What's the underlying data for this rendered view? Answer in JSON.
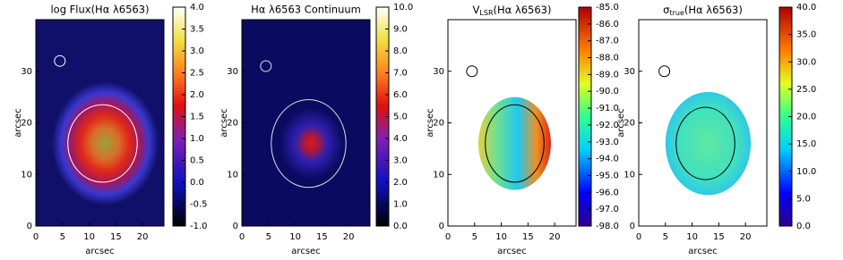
{
  "chart_data": [
    {
      "type": "heatmap",
      "title": "log Flux(Hα λ6563)",
      "xlabel": "arcsec",
      "ylabel": "arcsec",
      "xlim": [
        0,
        24
      ],
      "xticks": [
        0,
        5,
        10,
        15,
        20
      ],
      "ylim": [
        0,
        40
      ],
      "yticks": [
        0,
        10,
        20,
        30
      ],
      "colorbar": {
        "lim": [
          -1,
          4
        ],
        "ticks": [
          {
            "value": 4,
            "label": "4.0"
          },
          {
            "value": 3.5,
            "label": "3.5"
          },
          {
            "value": 3,
            "label": "3.0"
          },
          {
            "value": 2.5,
            "label": "2.5"
          },
          {
            "value": 2,
            "label": "2.0"
          },
          {
            "value": 1.5,
            "label": "1.5"
          },
          {
            "value": 1,
            "label": "1.0"
          },
          {
            "value": 0.5,
            "label": "0.5"
          },
          {
            "value": 0,
            "label": "0.0"
          },
          {
            "value": -0.5,
            "label": "-0.5"
          },
          {
            "value": -1,
            "label": "-1.0"
          }
        ]
      }
    },
    {
      "type": "heatmap",
      "title": "Hα λ6563 Continuum",
      "xlabel": "arcsec",
      "ylabel": "arcsec",
      "xlim": [
        0,
        24
      ],
      "xticks": [
        0,
        5,
        10,
        15,
        20
      ],
      "ylim": [
        0,
        40
      ],
      "yticks": [
        0,
        10,
        20,
        30
      ],
      "colorbar": {
        "lim": [
          0,
          10
        ],
        "ticks": [
          {
            "value": 10,
            "label": "10.0"
          },
          {
            "value": 9,
            "label": "9.0"
          },
          {
            "value": 8,
            "label": "8.0"
          },
          {
            "value": 7,
            "label": "7.0"
          },
          {
            "value": 6,
            "label": "6.0"
          },
          {
            "value": 5,
            "label": "5.0"
          },
          {
            "value": 4,
            "label": "4.0"
          },
          {
            "value": 3,
            "label": "3.0"
          },
          {
            "value": 2,
            "label": "2.0"
          },
          {
            "value": 1,
            "label": "1.0"
          },
          {
            "value": 0,
            "label": "0.0"
          }
        ]
      }
    },
    {
      "type": "heatmap",
      "title": {
        "symbol": "V",
        "subscript": "LSR",
        "rest": "(Hα λ6563)"
      },
      "xlabel": "arcsec",
      "ylabel": "arcsec",
      "xlim": [
        0,
        24
      ],
      "xticks": [
        0,
        5,
        10,
        15,
        20
      ],
      "ylim": [
        0,
        40
      ],
      "yticks": [
        0,
        10,
        20,
        30
      ],
      "colorbar": {
        "lim": [
          -98,
          -85
        ],
        "ticks": [
          {
            "value": -85,
            "label": "-85.0"
          },
          {
            "value": -86,
            "label": "-86.0"
          },
          {
            "value": -87,
            "label": "-87.0"
          },
          {
            "value": -88,
            "label": "-88.0"
          },
          {
            "value": -89,
            "label": "-89.0"
          },
          {
            "value": -90,
            "label": "-90.0"
          },
          {
            "value": -91,
            "label": "-91.0"
          },
          {
            "value": -92,
            "label": "-92.0"
          },
          {
            "value": -93,
            "label": "-93.0"
          },
          {
            "value": -94,
            "label": "-94.0"
          },
          {
            "value": -95,
            "label": "-95.0"
          },
          {
            "value": -96,
            "label": "-96.0"
          },
          {
            "value": -97,
            "label": "-97.0"
          },
          {
            "value": -98,
            "label": "-98.0"
          }
        ]
      }
    },
    {
      "type": "heatmap",
      "title": {
        "symbol": "σ",
        "subscript": "true",
        "rest": "(Hα λ6563)"
      },
      "xlabel": "arcsec",
      "ylabel": "arcsec",
      "xlim": [
        0,
        24
      ],
      "xticks": [
        0,
        5,
        10,
        15,
        20
      ],
      "ylim": [
        0,
        40
      ],
      "yticks": [
        0,
        10,
        20,
        30
      ],
      "colorbar": {
        "lim": [
          0,
          40
        ],
        "ticks": [
          {
            "value": 40,
            "label": "40.0"
          },
          {
            "value": 35,
            "label": "35.0"
          },
          {
            "value": 30,
            "label": "30.0"
          },
          {
            "value": 25,
            "label": "25.0"
          },
          {
            "value": 20,
            "label": "20.0"
          },
          {
            "value": 15,
            "label": "15.0"
          },
          {
            "value": 10,
            "label": "10.0"
          },
          {
            "value": 5,
            "label": "5.0"
          },
          {
            "value": 0,
            "label": "0.0"
          }
        ]
      }
    }
  ]
}
